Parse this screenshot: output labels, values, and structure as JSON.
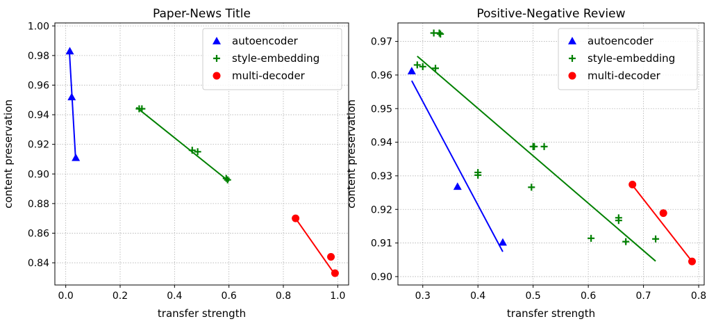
{
  "chart_data": [
    {
      "type": "scatter",
      "title": "Paper-News Title",
      "xlabel": "transfer strength",
      "ylabel": "content preservation",
      "xlim": [
        -0.04,
        1.04
      ],
      "ylim": [
        0.825,
        1.002
      ],
      "xticks": [
        "0.0",
        "0.2",
        "0.4",
        "0.6",
        "0.8",
        "1.0"
      ],
      "xtick_values": [
        0,
        0.2,
        0.4,
        0.6,
        0.8,
        1.0
      ],
      "yticks": [
        "0.84",
        "0.86",
        "0.88",
        "0.90",
        "0.92",
        "0.94",
        "0.96",
        "0.98",
        "1.00"
      ],
      "ytick_values": [
        0.84,
        0.86,
        0.88,
        0.9,
        0.92,
        0.94,
        0.96,
        0.98,
        1.0
      ],
      "grid": true,
      "legend_position": "top-right",
      "series": [
        {
          "name": "autoencoder",
          "marker": "triangle",
          "color": "#0000ff",
          "points": [
            [
              0.015,
              0.983
            ],
            [
              0.022,
              0.952
            ],
            [
              0.037,
              0.911
            ]
          ],
          "fit_line": [
            [
              0.014,
              0.981
            ],
            [
              0.036,
              0.911
            ]
          ]
        },
        {
          "name": "style-embedding",
          "marker": "plus",
          "color": "#008000",
          "points": [
            [
              0.27,
              0.944
            ],
            [
              0.28,
              0.944
            ],
            [
              0.465,
              0.916
            ],
            [
              0.485,
              0.915
            ],
            [
              0.59,
              0.897
            ],
            [
              0.595,
              0.896
            ]
          ],
          "fit_line": [
            [
              0.26,
              0.945
            ],
            [
              0.6,
              0.895
            ]
          ]
        },
        {
          "name": "multi-decoder",
          "marker": "circle",
          "color": "#ff0000",
          "points": [
            [
              0.845,
              0.87
            ],
            [
              0.975,
              0.844
            ],
            [
              0.99,
              0.833
            ]
          ],
          "fit_line": [
            [
              0.845,
              0.87
            ],
            [
              0.99,
              0.832
            ]
          ]
        }
      ]
    },
    {
      "type": "scatter",
      "title": "Positive-Negative Review",
      "xlabel": "transfer strength",
      "ylabel": "content preservation",
      "xlim": [
        0.255,
        0.81
      ],
      "ylim": [
        0.8975,
        0.9755
      ],
      "xticks": [
        "0.3",
        "0.4",
        "0.5",
        "0.6",
        "0.7",
        "0.8"
      ],
      "xtick_values": [
        0.3,
        0.4,
        0.5,
        0.6,
        0.7,
        0.8
      ],
      "yticks": [
        "0.90",
        "0.91",
        "0.92",
        "0.93",
        "0.94",
        "0.95",
        "0.96",
        "0.97"
      ],
      "ytick_values": [
        0.9,
        0.91,
        0.92,
        0.93,
        0.94,
        0.95,
        0.96,
        0.97
      ],
      "grid": true,
      "legend_position": "top-right",
      "series": [
        {
          "name": "autoencoder",
          "marker": "triangle",
          "color": "#0000ff",
          "points": [
            [
              0.28,
              0.9612
            ],
            [
              0.363,
              0.9268
            ],
            [
              0.445,
              0.9102
            ]
          ],
          "fit_line": [
            [
              0.28,
              0.9583
            ],
            [
              0.445,
              0.9074
            ]
          ]
        },
        {
          "name": "style-embedding",
          "marker": "plus",
          "color": "#008000",
          "points": [
            [
              0.29,
              0.963
            ],
            [
              0.3,
              0.9625
            ],
            [
              0.32,
              0.9725
            ],
            [
              0.33,
              0.9725
            ],
            [
              0.332,
              0.9722
            ],
            [
              0.323,
              0.962
            ],
            [
              0.4,
              0.931
            ],
            [
              0.4,
              0.9302
            ],
            [
              0.5,
              0.9387
            ],
            [
              0.502,
              0.9387
            ],
            [
              0.52,
              0.9387
            ],
            [
              0.497,
              0.9266
            ],
            [
              0.605,
              0.9114
            ],
            [
              0.655,
              0.9175
            ],
            [
              0.655,
              0.9167
            ],
            [
              0.668,
              0.9104
            ],
            [
              0.722,
              0.9112
            ]
          ],
          "fit_line": [
            [
              0.29,
              0.9656
            ],
            [
              0.722,
              0.9046
            ]
          ]
        },
        {
          "name": "multi-decoder",
          "marker": "circle",
          "color": "#ff0000",
          "points": [
            [
              0.68,
              0.9274
            ],
            [
              0.736,
              0.9189
            ],
            [
              0.788,
              0.9045
            ]
          ],
          "fit_line": [
            [
              0.68,
              0.9272
            ],
            [
              0.788,
              0.9045
            ]
          ]
        }
      ]
    }
  ]
}
